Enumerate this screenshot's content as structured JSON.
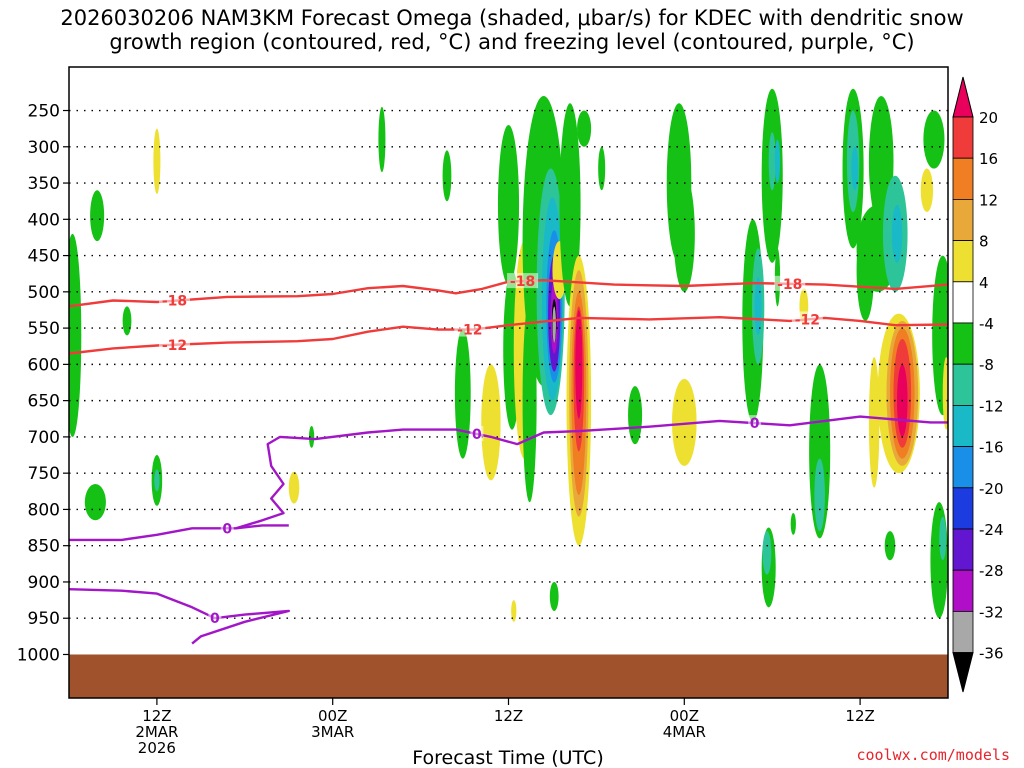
{
  "title": {
    "line1": "2026030206 NAM3KM Forecast Omega (shaded, μbar/s) for KDEC with dendritic snow",
    "line2": "growth region (contoured, red, °C) and freezing level (contoured, purple, °C)"
  },
  "credit": "coolwx.com/models",
  "chart_data": {
    "type": "heatmap",
    "xlabel": "Forecast Time (UTC)",
    "ylabel": "",
    "x_unit": "forecast hour",
    "xlim": [
      -5,
      45
    ],
    "y_levels": [
      250,
      300,
      350,
      400,
      450,
      500,
      550,
      600,
      650,
      700,
      750,
      800,
      850,
      900,
      950,
      1000
    ],
    "ylim": [
      1060,
      190
    ],
    "x_ticks": [
      {
        "x": 0,
        "lines": [
          "12Z",
          "2MAR",
          "2026"
        ]
      },
      {
        "x": 10,
        "lines": [
          "00Z",
          "3MAR"
        ]
      },
      {
        "x": 20,
        "lines": [
          "12Z"
        ]
      },
      {
        "x": 30,
        "lines": [
          "00Z",
          "4MAR"
        ]
      },
      {
        "x": 40,
        "lines": [
          "12Z"
        ]
      }
    ],
    "colorbar": {
      "levels": [
        20,
        16,
        12,
        8,
        4,
        -4,
        -8,
        -12,
        -16,
        -20,
        -24,
        -28,
        -32,
        -36
      ],
      "colors": [
        "#e8005c",
        "#f03b3b",
        "#f07e22",
        "#e9a93a",
        "#eee030",
        "#ffffff",
        "#16c116",
        "#2ec49a",
        "#19b9c8",
        "#1a8fe8",
        "#1c3ce0",
        "#6316d0",
        "#b00fc8",
        "#a8a8a8",
        "#000000"
      ]
    },
    "contours": [
      {
        "label": "-18",
        "color": "#f03b3b",
        "label_x": [
          1,
          20.8,
          36
        ],
        "points": [
          [
            -5,
            520
          ],
          [
            -2.5,
            512
          ],
          [
            0,
            514
          ],
          [
            4,
            507
          ],
          [
            8,
            506
          ],
          [
            10,
            503
          ],
          [
            12,
            495
          ],
          [
            14,
            492
          ],
          [
            16,
            498
          ],
          [
            17,
            502
          ],
          [
            18.5,
            496
          ],
          [
            20,
            486
          ],
          [
            22,
            484
          ],
          [
            26,
            490
          ],
          [
            30,
            492
          ],
          [
            34,
            488
          ],
          [
            38,
            490
          ],
          [
            42,
            496
          ],
          [
            45,
            490
          ]
        ]
      },
      {
        "label": "-12",
        "color": "#f03b3b",
        "label_x": [
          1,
          17.8,
          37
        ],
        "points": [
          [
            -5,
            585
          ],
          [
            -2.5,
            578
          ],
          [
            0,
            574
          ],
          [
            4,
            570
          ],
          [
            8,
            568
          ],
          [
            10,
            565
          ],
          [
            12,
            555
          ],
          [
            14,
            548
          ],
          [
            16,
            552
          ],
          [
            18,
            552
          ],
          [
            20,
            546
          ],
          [
            24,
            536
          ],
          [
            28,
            538
          ],
          [
            32,
            535
          ],
          [
            36,
            540
          ],
          [
            38,
            536
          ],
          [
            40,
            540
          ],
          [
            42,
            546
          ],
          [
            45,
            545
          ]
        ]
      },
      {
        "label": "0",
        "color": "#a216c8",
        "label_x": [
          18.2,
          34
        ],
        "points": [
          [
            4.5,
            826
          ],
          [
            6,
            815
          ],
          [
            7.2,
            805
          ],
          [
            6.5,
            785
          ],
          [
            7.2,
            765
          ],
          [
            6.5,
            740
          ],
          [
            6.3,
            710
          ],
          [
            7,
            700
          ],
          [
            9,
            703
          ],
          [
            12,
            694
          ],
          [
            14,
            690
          ],
          [
            17,
            690
          ],
          [
            19,
            700
          ],
          [
            20.5,
            710
          ],
          [
            22,
            694
          ],
          [
            24,
            692
          ],
          [
            28,
            686
          ],
          [
            32,
            678
          ],
          [
            36,
            684
          ],
          [
            40,
            672
          ],
          [
            44,
            680
          ],
          [
            45,
            680
          ]
        ]
      },
      {
        "label": "0",
        "color": "#a216c8",
        "label_x": [
          4
        ],
        "points": [
          [
            -5,
            842
          ],
          [
            -2,
            842
          ],
          [
            0,
            835
          ],
          [
            2,
            826
          ],
          [
            4.5,
            826
          ],
          [
            6,
            822
          ],
          [
            7.5,
            822
          ]
        ]
      },
      {
        "label": "0",
        "color": "#a216c8",
        "label_x": [
          3.3
        ],
        "points": [
          [
            -5,
            910
          ],
          [
            -2,
            912
          ],
          [
            0,
            916
          ],
          [
            2,
            935
          ],
          [
            3.3,
            950
          ],
          [
            5,
            945
          ],
          [
            7.5,
            940
          ],
          [
            5,
            955
          ],
          [
            2.5,
            975
          ],
          [
            2,
            985
          ]
        ]
      }
    ]
  }
}
